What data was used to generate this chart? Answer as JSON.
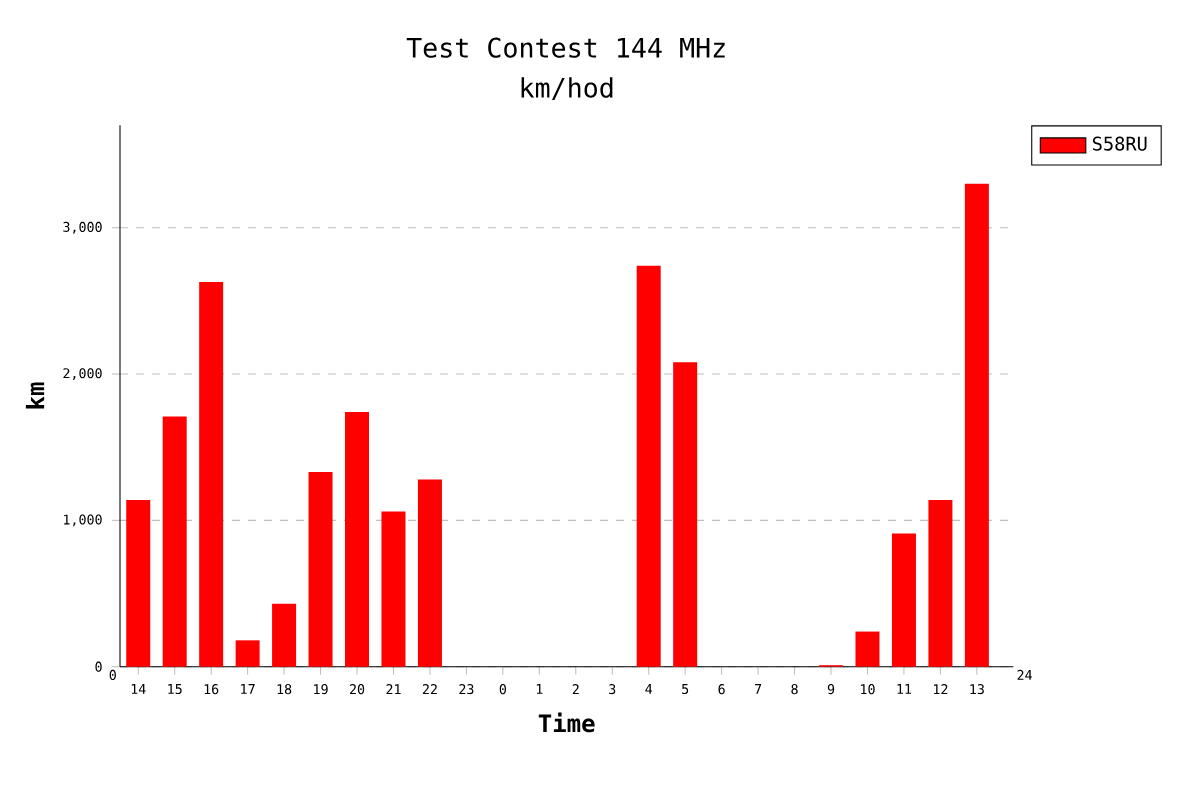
{
  "chart_data": {
    "type": "bar",
    "title": "Test Contest 144 MHz",
    "subtitle": "km/hod",
    "xlabel": "Time",
    "ylabel": "km",
    "categories": [
      "14",
      "15",
      "16",
      "17",
      "18",
      "19",
      "20",
      "21",
      "22",
      "23",
      "0",
      "1",
      "2",
      "3",
      "4",
      "5",
      "6",
      "7",
      "8",
      "9",
      "10",
      "11",
      "12",
      "13"
    ],
    "series": [
      {
        "name": "S58RU",
        "color": "#ff0000",
        "values": [
          1140,
          1710,
          2630,
          180,
          430,
          1330,
          1740,
          1060,
          1280,
          0,
          0,
          0,
          0,
          0,
          2740,
          2080,
          0,
          0,
          0,
          10,
          240,
          910,
          1140,
          3300
        ]
      }
    ],
    "ylim": [
      0,
      3700
    ],
    "yticks": [
      0,
      {
        "value": 1000,
        "label": "1,000"
      },
      {
        "value": 2000,
        "label": "2,000"
      },
      {
        "value": 3000,
        "label": "3,000"
      }
    ],
    "annotations": [
      "0",
      "24"
    ],
    "grid": "y",
    "legend": "top right"
  }
}
